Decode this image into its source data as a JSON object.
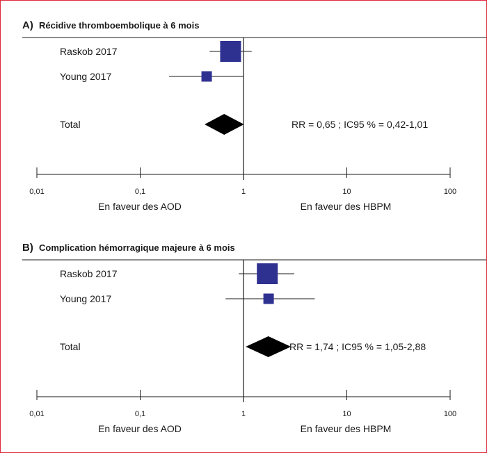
{
  "chart_data": [
    {
      "type": "forest",
      "panel_letter": "A)",
      "title": "Récidive thromboembolique à 6 mois",
      "x_scale": "log",
      "xlim": [
        0.01,
        100
      ],
      "ticks": [
        0.01,
        0.1,
        1,
        10,
        100
      ],
      "tick_labels": [
        "0,01",
        "0,1",
        "1",
        "10",
        "100"
      ],
      "favour_left": "En faveur des AOD",
      "favour_right": "En faveur des HBPM",
      "studies": [
        {
          "name": "Raskob 2017",
          "rr": 0.75,
          "ci": [
            0.47,
            1.2
          ],
          "weight": "large"
        },
        {
          "name": "Young 2017",
          "rr": 0.44,
          "ci": [
            0.19,
            1.0
          ],
          "weight": "small"
        }
      ],
      "total": {
        "name": "Total",
        "rr": 0.65,
        "ci": [
          0.42,
          1.01
        ]
      },
      "total_text": "RR = 0,65 ; IC95 % = 0,42-1,01",
      "marker_color": "#2f3191"
    },
    {
      "type": "forest",
      "panel_letter": "B)",
      "title": "Complication hémorragique majeure à 6 mois",
      "x_scale": "log",
      "xlim": [
        0.01,
        100
      ],
      "ticks": [
        0.01,
        0.1,
        1,
        10,
        100
      ],
      "tick_labels": [
        "0,01",
        "0,1",
        "1",
        "10",
        "100"
      ],
      "favour_left": "En faveur des AOD",
      "favour_right": "En faveur des HBPM",
      "studies": [
        {
          "name": "Raskob 2017",
          "rr": 1.7,
          "ci": [
            0.9,
            3.1
          ],
          "weight": "large"
        },
        {
          "name": "Young 2017",
          "rr": 1.75,
          "ci": [
            0.67,
            4.9
          ],
          "weight": "small"
        }
      ],
      "total": {
        "name": "Total",
        "rr": 1.74,
        "ci": [
          1.05,
          2.88
        ]
      },
      "total_text": "RR = 1,74 ; IC95 % = 1,05-2,88",
      "marker_color": "#2f3191"
    }
  ]
}
